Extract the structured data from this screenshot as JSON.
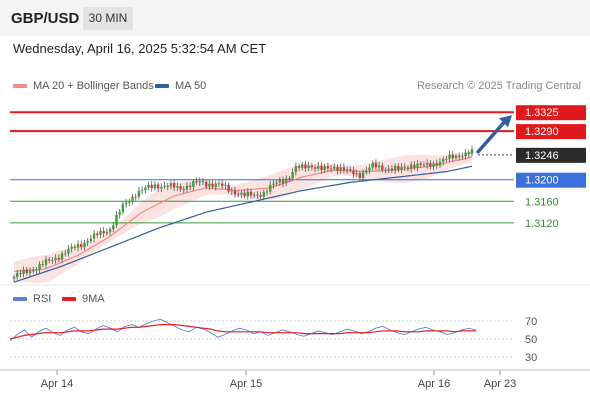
{
  "header": {
    "symbol": "GBP/USD",
    "timeframe": "30 MIN"
  },
  "datetime": "Wednesday, April 16, 2025 5:32:54 AM CET",
  "legend": {
    "ma20": {
      "label": "MA 20 + Bollinger Bands",
      "color": "#ef8a87"
    },
    "ma50": {
      "label": "MA 50",
      "color": "#2f5d9e"
    }
  },
  "credit": "Research © 2025 Trading Central",
  "rsi_legend": {
    "rsi": {
      "label": "RSI",
      "color": "#5b7fd6"
    },
    "ma9": {
      "label": "9MA",
      "color": "#e02020"
    }
  },
  "chart_data": [
    {
      "type": "candlestick",
      "title": "GBP/USD",
      "timeframe": "30 MIN",
      "ylim": [
        1.3005,
        1.3355
      ],
      "x_tick_labels": [
        "Apr 14",
        "Apr 15",
        "Apr 16",
        "Apr 23"
      ],
      "last_price": {
        "value": "1.3246",
        "y": 1.3246
      },
      "levels": [
        {
          "value": "1.3325",
          "y": 1.3325,
          "kind": "resistance",
          "color": "#e01a1a"
        },
        {
          "value": "1.3290",
          "y": 1.329,
          "kind": "resistance",
          "color": "#e01a1a"
        },
        {
          "value": "1.3200",
          "y": 1.32,
          "kind": "pivot",
          "color": "#3b6fd9"
        },
        {
          "value": "1.3160",
          "y": 1.316,
          "kind": "support",
          "color": "#3a9a3a"
        },
        {
          "value": "1.3120",
          "y": 1.312,
          "kind": "support",
          "color": "#3a9a3a"
        }
      ],
      "target_arrow": {
        "from": 1.3246,
        "to": 1.3325,
        "color": "#2f5d9e"
      },
      "close_path": [
        [
          0,
          1.302
        ],
        [
          8,
          1.304
        ],
        [
          16,
          1.3065
        ],
        [
          22,
          1.3085
        ],
        [
          30,
          1.311
        ],
        [
          34,
          1.315
        ],
        [
          38,
          1.3175
        ],
        [
          44,
          1.319
        ],
        [
          52,
          1.3185
        ],
        [
          58,
          1.3195
        ],
        [
          64,
          1.319
        ],
        [
          72,
          1.317
        ],
        [
          78,
          1.3175
        ],
        [
          82,
          1.3195
        ],
        [
          86,
          1.3205
        ],
        [
          88,
          1.322
        ],
        [
          92,
          1.3228
        ],
        [
          96,
          1.3218
        ],
        [
          100,
          1.3225
        ],
        [
          104,
          1.3215
        ],
        [
          108,
          1.321
        ],
        [
          112,
          1.3225
        ],
        [
          116,
          1.3222
        ],
        [
          120,
          1.3218
        ],
        [
          124,
          1.3228
        ],
        [
          128,
          1.3225
        ],
        [
          132,
          1.3232
        ],
        [
          136,
          1.324
        ],
        [
          140,
          1.3248
        ],
        [
          143,
          1.325
        ]
      ],
      "ma20_path": [
        [
          0,
          1.303
        ],
        [
          10,
          1.3035
        ],
        [
          20,
          1.306
        ],
        [
          30,
          1.3095
        ],
        [
          40,
          1.314
        ],
        [
          50,
          1.317
        ],
        [
          60,
          1.3185
        ],
        [
          70,
          1.318
        ],
        [
          80,
          1.3185
        ],
        [
          90,
          1.3205
        ],
        [
          100,
          1.3218
        ],
        [
          110,
          1.3215
        ],
        [
          120,
          1.3218
        ],
        [
          130,
          1.3225
        ],
        [
          140,
          1.3238
        ],
        [
          143,
          1.3242
        ]
      ],
      "ma50_path": [
        [
          0,
          1.301
        ],
        [
          15,
          1.304
        ],
        [
          30,
          1.3075
        ],
        [
          45,
          1.311
        ],
        [
          60,
          1.314
        ],
        [
          75,
          1.316
        ],
        [
          90,
          1.318
        ],
        [
          105,
          1.3195
        ],
        [
          120,
          1.3205
        ],
        [
          135,
          1.3215
        ],
        [
          143,
          1.3225
        ]
      ],
      "band_halfwidth": 0.0022
    },
    {
      "type": "line",
      "title": "RSI",
      "ylim": [
        20,
        80
      ],
      "y_tick_labels": [
        "70",
        "50",
        "30"
      ],
      "y_ticks": [
        70,
        50,
        30
      ],
      "series": [
        {
          "name": "RSI",
          "color": "#5b7fd6",
          "values": [
            48,
            55,
            60,
            52,
            58,
            62,
            57,
            54,
            60,
            63,
            58,
            56,
            61,
            65,
            62,
            58,
            64,
            66,
            63,
            67,
            70,
            72,
            68,
            64,
            60,
            58,
            63,
            61,
            57,
            52,
            55,
            59,
            62,
            60,
            56,
            58,
            54,
            57,
            60,
            58,
            55,
            53,
            56,
            59,
            57,
            55,
            58,
            61,
            59,
            56,
            58,
            62,
            64,
            60,
            57,
            55,
            58,
            61,
            63,
            60,
            58,
            55,
            57,
            60,
            62,
            60
          ]
        },
        {
          "name": "9MA",
          "color": "#e02020",
          "values": [
            50,
            52,
            54,
            55,
            56,
            57,
            57,
            57,
            58,
            59,
            59,
            59,
            60,
            61,
            61,
            61,
            62,
            63,
            63,
            64,
            65,
            66,
            66,
            66,
            65,
            64,
            63,
            62,
            61,
            59,
            58,
            58,
            58,
            58,
            58,
            58,
            57,
            57,
            57,
            57,
            57,
            56,
            56,
            56,
            56,
            56,
            56,
            57,
            57,
            57,
            57,
            58,
            59,
            59,
            59,
            58,
            58,
            58,
            59,
            59,
            59,
            59,
            58,
            59,
            59,
            59
          ]
        }
      ]
    }
  ]
}
